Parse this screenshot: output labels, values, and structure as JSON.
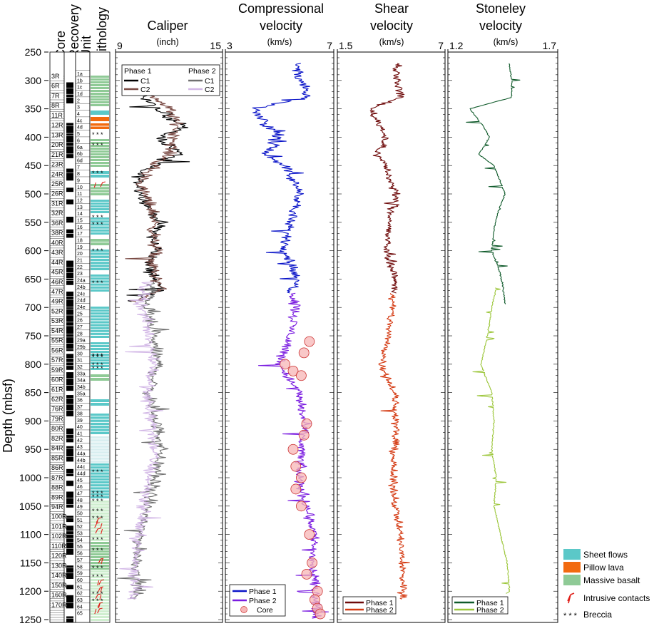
{
  "y_axis": {
    "label": "Depth (mbsf)",
    "ticks": [
      250,
      300,
      350,
      400,
      450,
      500,
      550,
      600,
      650,
      700,
      750,
      800,
      850,
      900,
      950,
      1000,
      1050,
      1100,
      1150,
      1200,
      1250
    ],
    "range": [
      250,
      1255
    ]
  },
  "columns": {
    "core": "Core",
    "recovery": "Recovery",
    "unit": "Unit",
    "lithology": "Lithology"
  },
  "core_labels": [
    "3R",
    "6R",
    "7R",
    "8R",
    "11R",
    "12R",
    "13R",
    "20R",
    "21R",
    "23R",
    "24R",
    "25R",
    "26R",
    "31R",
    "32R",
    "36R",
    "38R",
    "40R",
    "43R",
    "44R",
    "45R",
    "46R",
    "47R",
    "49R",
    "52R",
    "53R",
    "54R",
    "55R",
    "56R",
    "57R",
    "59R",
    "60R",
    "61R",
    "62R",
    "76R",
    "79R",
    "80R",
    "82R",
    "84R",
    "85R",
    "86R",
    "87R",
    "88R",
    "89R",
    "94R",
    "100R",
    "101R",
    "102R",
    "110R",
    "120R",
    "130R",
    "140R",
    "150R",
    "160R",
    "170R"
  ],
  "unit_labels": [
    "1a",
    "1b",
    "1c",
    "1d",
    "2",
    "3",
    "4",
    "4c",
    "4d",
    "5",
    "6",
    "6a",
    "6b",
    "6d",
    "7",
    "8",
    "9",
    "10",
    "11",
    "12",
    "13",
    "14",
    "15",
    "16",
    "17",
    "18",
    "19",
    "20",
    "21",
    "22",
    "23",
    "24a",
    "24b",
    "24c",
    "24d",
    "24e",
    "25",
    "26",
    "27",
    "28",
    "29a",
    "29b",
    "30",
    "31",
    "32",
    "33a",
    "34a",
    "34b",
    "35a",
    "36",
    "37",
    "38",
    "39",
    "40",
    "41",
    "42",
    "43",
    "44a",
    "44b",
    "44c",
    "44d",
    "45",
    "46",
    "47",
    "48",
    "49",
    "50",
    "51",
    "52",
    "53",
    "54",
    "55",
    "56",
    "57",
    "58",
    "59",
    "60",
    "61",
    "62",
    "63",
    "64",
    "65"
  ],
  "legend_lithology": [
    {
      "label": "Sheet flows",
      "color": "#5bc8c8"
    },
    {
      "label": "Pillow lava",
      "color": "#f26a0f"
    },
    {
      "label": "Massive basalt",
      "color": "#8fca96"
    },
    {
      "label": "Intrusive contacts",
      "symbol": "red-tick-icon"
    },
    {
      "label": "Breccia",
      "symbol": "asterisk-icon"
    }
  ],
  "chart_data": [
    {
      "type": "line",
      "title": "Caliper",
      "unit": "(inch)",
      "xlim": [
        9,
        15
      ],
      "xticks": [
        9,
        15
      ],
      "legend_groups": [
        {
          "name": "Phase 1",
          "items": [
            {
              "name": "C1",
              "color": "#000000"
            },
            {
              "name": "C2",
              "color": "#7a4a44"
            }
          ]
        },
        {
          "name": "Phase 2",
          "items": [
            {
              "name": "C1",
              "color": "#707070"
            },
            {
              "name": "C2",
              "color": "#d2b7e6"
            }
          ]
        }
      ],
      "series": [
        {
          "name": "C1",
          "group": "Phase 1",
          "color": "#000000",
          "range": [
            320,
            690
          ],
          "x": [
            [
              320,
              10.5
            ],
            [
              350,
              11.2
            ],
            [
              380,
              12.9
            ],
            [
              400,
              11.5
            ],
            [
              430,
              12.6
            ],
            [
              460,
              10.4
            ],
            [
              480,
              10.3
            ],
            [
              500,
              10.5
            ],
            [
              520,
              10.8
            ],
            [
              550,
              11.5
            ],
            [
              580,
              11.0
            ],
            [
              600,
              11.4
            ],
            [
              620,
              10.8
            ],
            [
              650,
              11.2
            ],
            [
              670,
              11.6
            ],
            [
              690,
              9.8
            ]
          ]
        },
        {
          "name": "C2",
          "group": "Phase 1",
          "color": "#7a4a44",
          "range": [
            320,
            690
          ],
          "x": [
            [
              320,
              10.8
            ],
            [
              350,
              12.0
            ],
            [
              380,
              12.5
            ],
            [
              400,
              12.3
            ],
            [
              430,
              12.0
            ],
            [
              460,
              10.8
            ],
            [
              480,
              10.4
            ],
            [
              500,
              10.6
            ],
            [
              520,
              11.0
            ],
            [
              550,
              11.2
            ],
            [
              580,
              11.1
            ],
            [
              600,
              11.3
            ],
            [
              620,
              11.0
            ],
            [
              650,
              11.3
            ],
            [
              670,
              11.5
            ],
            [
              690,
              10.0
            ]
          ]
        },
        {
          "name": "C1",
          "group": "Phase 2",
          "color": "#707070",
          "range": [
            655,
            1215
          ],
          "x": [
            [
              655,
              11.0
            ],
            [
              700,
              10.8
            ],
            [
              750,
              11.1
            ],
            [
              800,
              11.4
            ],
            [
              850,
              10.9
            ],
            [
              900,
              11.3
            ],
            [
              950,
              11.6
            ],
            [
              1000,
              11.2
            ],
            [
              1050,
              10.8
            ],
            [
              1100,
              10.4
            ],
            [
              1150,
              10.2
            ],
            [
              1200,
              10.3
            ],
            [
              1215,
              9.9
            ]
          ]
        },
        {
          "name": "C2",
          "group": "Phase 2",
          "color": "#d2b7e6",
          "range": [
            655,
            1215
          ],
          "x": [
            [
              655,
              10.7
            ],
            [
              700,
              10.5
            ],
            [
              750,
              10.9
            ],
            [
              800,
              11.2
            ],
            [
              850,
              10.7
            ],
            [
              900,
              11.0
            ],
            [
              950,
              11.2
            ],
            [
              1000,
              10.9
            ],
            [
              1050,
              10.6
            ],
            [
              1100,
              10.3
            ],
            [
              1150,
              10.1
            ],
            [
              1200,
              10.2
            ],
            [
              1215,
              9.8
            ]
          ]
        }
      ]
    },
    {
      "type": "line",
      "title": "Compressional velocity",
      "title_lines": [
        "Compressional",
        "velocity"
      ],
      "unit": "(km/s)",
      "xlim": [
        3,
        7
      ],
      "xticks": [
        3,
        7
      ],
      "series": [
        {
          "name": "Phase 1",
          "color": "#0a14c8",
          "range": [
            270,
            675
          ],
          "x": [
            [
              270,
              5.6
            ],
            [
              300,
              5.8
            ],
            [
              330,
              6.0
            ],
            [
              350,
              4.0
            ],
            [
              380,
              4.6
            ],
            [
              400,
              5.0
            ],
            [
              430,
              4.5
            ],
            [
              450,
              5.2
            ],
            [
              470,
              5.4
            ],
            [
              500,
              5.8
            ],
            [
              530,
              5.5
            ],
            [
              560,
              5.3
            ],
            [
              600,
              5.2
            ],
            [
              630,
              5.5
            ],
            [
              660,
              5.6
            ],
            [
              675,
              5.4
            ]
          ]
        },
        {
          "name": "Phase 2",
          "color": "#7a1ce0",
          "range": [
            675,
            1248
          ],
          "x": [
            [
              675,
              5.5
            ],
            [
              700,
              5.6
            ],
            [
              750,
              5.4
            ],
            [
              800,
              5.0
            ],
            [
              850,
              5.7
            ],
            [
              900,
              5.9
            ],
            [
              950,
              5.8
            ],
            [
              1000,
              5.7
            ],
            [
              1050,
              6.0
            ],
            [
              1100,
              6.3
            ],
            [
              1150,
              6.2
            ],
            [
              1200,
              6.3
            ],
            [
              1248,
              6.4
            ]
          ]
        },
        {
          "name": "Core",
          "color": "#f7b6b6",
          "kind": "scatter",
          "points": [
            [
              760,
              6.1
            ],
            [
              780,
              5.9
            ],
            [
              800,
              5.2
            ],
            [
              812,
              5.5
            ],
            [
              820,
              5.8
            ],
            [
              905,
              6.0
            ],
            [
              925,
              5.9
            ],
            [
              950,
              5.5
            ],
            [
              980,
              5.6
            ],
            [
              1000,
              5.8
            ],
            [
              1020,
              5.6
            ],
            [
              1050,
              5.8
            ],
            [
              1100,
              6.1
            ],
            [
              1150,
              6.2
            ],
            [
              1170,
              6.0
            ],
            [
              1200,
              6.4
            ],
            [
              1215,
              6.3
            ],
            [
              1230,
              6.4
            ],
            [
              1240,
              6.5
            ]
          ]
        }
      ]
    },
    {
      "type": "line",
      "title": "Shear velocity",
      "title_lines": [
        "Shear",
        "velocity"
      ],
      "unit": "(km/s)",
      "xlim": [
        1.5,
        7
      ],
      "xticks": [
        1.5,
        7
      ],
      "series": [
        {
          "name": "Phase 1",
          "color": "#6e0a0a",
          "range": [
            270,
            675
          ],
          "x": [
            [
              270,
              4.5
            ],
            [
              300,
              4.6
            ],
            [
              330,
              4.7
            ],
            [
              350,
              3.2
            ],
            [
              380,
              3.7
            ],
            [
              400,
              4.0
            ],
            [
              430,
              3.5
            ],
            [
              450,
              4.0
            ],
            [
              480,
              4.2
            ],
            [
              500,
              4.6
            ],
            [
              530,
              4.3
            ],
            [
              560,
              4.1
            ],
            [
              600,
              4.0
            ],
            [
              630,
              4.3
            ],
            [
              660,
              4.5
            ],
            [
              675,
              4.4
            ]
          ]
        },
        {
          "name": "Phase 2",
          "color": "#d43a12",
          "range": [
            675,
            1215
          ],
          "x": [
            [
              675,
              4.3
            ],
            [
              700,
              4.3
            ],
            [
              750,
              4.1
            ],
            [
              800,
              3.8
            ],
            [
              850,
              4.4
            ],
            [
              900,
              4.5
            ],
            [
              950,
              4.4
            ],
            [
              1000,
              4.3
            ],
            [
              1050,
              4.5
            ],
            [
              1100,
              4.7
            ],
            [
              1150,
              4.8
            ],
            [
              1200,
              4.9
            ],
            [
              1215,
              4.8
            ]
          ]
        }
      ]
    },
    {
      "type": "line",
      "title": "Stoneley velocity",
      "title_lines": [
        "Stoneley",
        "velocity"
      ],
      "unit": "(km/s)",
      "xlim": [
        1.2,
        1.7
      ],
      "xticks": [
        1.2,
        1.7
      ],
      "series": [
        {
          "name": "Phase 1",
          "color": "#0f5a2a",
          "range": [
            270,
            695
          ],
          "x": [
            [
              270,
              1.48
            ],
            [
              300,
              1.49
            ],
            [
              330,
              1.49
            ],
            [
              350,
              1.3
            ],
            [
              380,
              1.36
            ],
            [
              400,
              1.39
            ],
            [
              430,
              1.34
            ],
            [
              450,
              1.41
            ],
            [
              480,
              1.44
            ],
            [
              500,
              1.46
            ],
            [
              530,
              1.43
            ],
            [
              560,
              1.41
            ],
            [
              600,
              1.4
            ],
            [
              630,
              1.43
            ],
            [
              660,
              1.45
            ],
            [
              695,
              1.46
            ]
          ]
        },
        {
          "name": "Phase 2",
          "color": "#9cc63a",
          "range": [
            665,
            1205
          ],
          "x": [
            [
              665,
              1.42
            ],
            [
              700,
              1.4
            ],
            [
              750,
              1.38
            ],
            [
              800,
              1.35
            ],
            [
              850,
              1.4
            ],
            [
              900,
              1.41
            ],
            [
              950,
              1.4
            ],
            [
              1000,
              1.42
            ],
            [
              1050,
              1.41
            ],
            [
              1100,
              1.44
            ],
            [
              1150,
              1.47
            ],
            [
              1200,
              1.48
            ],
            [
              1205,
              1.46
            ]
          ]
        }
      ]
    }
  ]
}
